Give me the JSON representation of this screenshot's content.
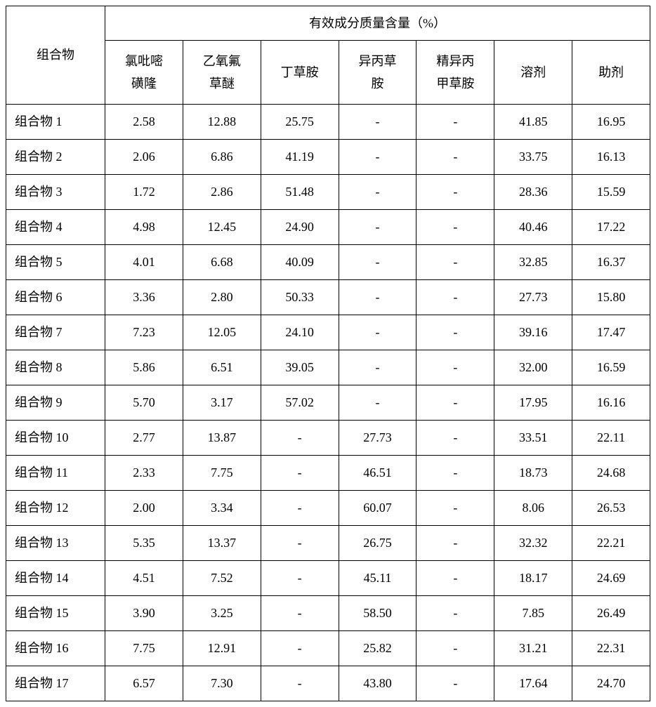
{
  "table": {
    "group_header": "有效成分质量含量（%）",
    "row_header": "组合物",
    "columns": [
      [
        "氯吡嘧",
        "磺隆"
      ],
      [
        "乙氧氟",
        "草醚"
      ],
      [
        "丁草胺"
      ],
      [
        "异丙草",
        "胺"
      ],
      [
        "精异丙",
        "甲草胺"
      ],
      [
        "溶剂"
      ],
      [
        "助剂"
      ]
    ],
    "rows": [
      {
        "label": "组合物 1",
        "v": [
          "2.58",
          "12.88",
          "25.75",
          "-",
          "-",
          "41.85",
          "16.95"
        ]
      },
      {
        "label": "组合物 2",
        "v": [
          "2.06",
          "6.86",
          "41.19",
          "-",
          "-",
          "33.75",
          "16.13"
        ]
      },
      {
        "label": "组合物 3",
        "v": [
          "1.72",
          "2.86",
          "51.48",
          "-",
          "-",
          "28.36",
          "15.59"
        ]
      },
      {
        "label": "组合物 4",
        "v": [
          "4.98",
          "12.45",
          "24.90",
          "-",
          "-",
          "40.46",
          "17.22"
        ]
      },
      {
        "label": "组合物 5",
        "v": [
          "4.01",
          "6.68",
          "40.09",
          "-",
          "-",
          "32.85",
          "16.37"
        ]
      },
      {
        "label": "组合物 6",
        "v": [
          "3.36",
          "2.80",
          "50.33",
          "-",
          "-",
          "27.73",
          "15.80"
        ]
      },
      {
        "label": "组合物 7",
        "v": [
          "7.23",
          "12.05",
          "24.10",
          "-",
          "-",
          "39.16",
          "17.47"
        ]
      },
      {
        "label": "组合物 8",
        "v": [
          "5.86",
          "6.51",
          "39.05",
          "-",
          "-",
          "32.00",
          "16.59"
        ]
      },
      {
        "label": "组合物 9",
        "v": [
          "5.70",
          "3.17",
          "57.02",
          "-",
          "-",
          "17.95",
          "16.16"
        ]
      },
      {
        "label": "组合物 10",
        "v": [
          "2.77",
          "13.87",
          "-",
          "27.73",
          "-",
          "33.51",
          "22.11"
        ]
      },
      {
        "label": "组合物 11",
        "v": [
          "2.33",
          "7.75",
          "-",
          "46.51",
          "-",
          "18.73",
          "24.68"
        ]
      },
      {
        "label": "组合物 12",
        "v": [
          "2.00",
          "3.34",
          "-",
          "60.07",
          "-",
          "8.06",
          "26.53"
        ]
      },
      {
        "label": "组合物 13",
        "v": [
          "5.35",
          "13.37",
          "-",
          "26.75",
          "-",
          "32.32",
          "22.21"
        ]
      },
      {
        "label": "组合物 14",
        "v": [
          "4.51",
          "7.52",
          "-",
          "45.11",
          "-",
          "18.17",
          "24.69"
        ]
      },
      {
        "label": "组合物 15",
        "v": [
          "3.90",
          "3.25",
          "-",
          "58.50",
          "-",
          "7.85",
          "26.49"
        ]
      },
      {
        "label": "组合物 16",
        "v": [
          "7.75",
          "12.91",
          "-",
          "25.82",
          "-",
          "31.21",
          "22.31"
        ]
      },
      {
        "label": "组合物 17",
        "v": [
          "6.57",
          "7.30",
          "-",
          "43.80",
          "-",
          "17.64",
          "24.70"
        ]
      }
    ],
    "background_color": "#ffffff",
    "border_color": "#000000",
    "font_size": 18
  }
}
